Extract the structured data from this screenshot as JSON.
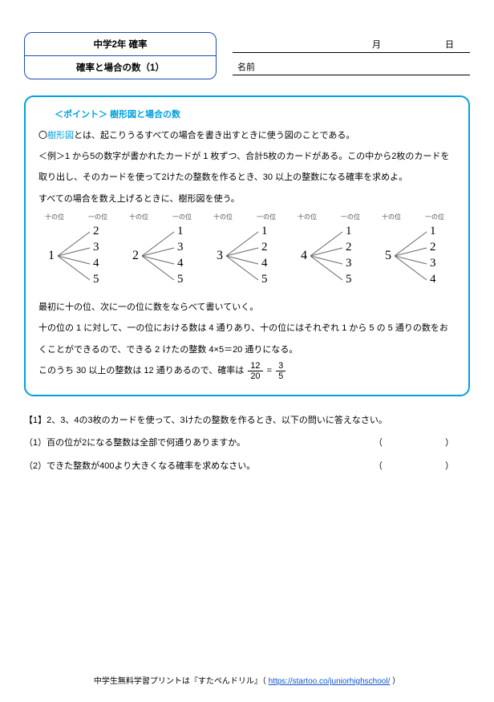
{
  "header": {
    "grade_unit": "中学2年 確率",
    "subtitle": "確率と場合の数（1）",
    "month_label": "月",
    "day_label": "日",
    "name_label": "名前"
  },
  "point": {
    "title": "＜ポイント＞ 樹形図と場合の数",
    "line1_prefix": "〇",
    "line1_term": "樹形図",
    "line1_rest": "とは、起こりうるすべての場合を書き出すときに使う図のことである。",
    "example": "＜例＞1 から5の数字が書かれたカードが 1 枚ずつ、合計5枚のカードがある。この中から2枚のカードを取り出し、そのカードを使って2けたの整数を作るとき、30 以上の整数になる確率を求めよ。",
    "pre_tree": "すべての場合を数え上げるときに、樹形図を使う。",
    "col_left": "十の位",
    "col_right": "一の位",
    "trees": [
      {
        "root": "1",
        "leaves": [
          "2",
          "3",
          "4",
          "5"
        ]
      },
      {
        "root": "2",
        "leaves": [
          "1",
          "3",
          "4",
          "5"
        ]
      },
      {
        "root": "3",
        "leaves": [
          "1",
          "2",
          "4",
          "5"
        ]
      },
      {
        "root": "4",
        "leaves": [
          "1",
          "2",
          "3",
          "5"
        ]
      },
      {
        "root": "5",
        "leaves": [
          "1",
          "2",
          "3",
          "4"
        ]
      }
    ],
    "after1": "最初に十の位、次に一の位に数をならべて書いていく。",
    "after2": "十の位の 1 に対して、一の位における数は 4 通りあり、十の位にはそれぞれ 1 から 5 の 5 通りの数をおくことができるので、できる 2 けたの整数 4×5＝20 通りになる。",
    "after3_pre": "このうち 30 以上の整数は 12 通りあるので、確率は ",
    "frac1": {
      "num": "12",
      "den": "20"
    },
    "eq": " = ",
    "frac2": {
      "num": "3",
      "den": "5"
    }
  },
  "questions": {
    "intro": "【1】2、3、4の3枚のカードを使って、3けたの整数を作るとき、以下の問いに答えなさい。",
    "q1": "（1）百の位が2になる整数は全部で何通りありますか。",
    "q2": "（2）できた整数が400より大きくなる確率を求めなさい。",
    "paren_l": "（",
    "paren_r": "）"
  },
  "footer": {
    "text_pre": "中学生無料学習プリントは『すたペんドリル』（ ",
    "link": "https://startoo.co/juniorhighschool/",
    "text_post": " ）"
  },
  "style": {
    "accent_color": "#00a0e0",
    "title_border": "#1a4db3",
    "line_color": "#666666"
  }
}
